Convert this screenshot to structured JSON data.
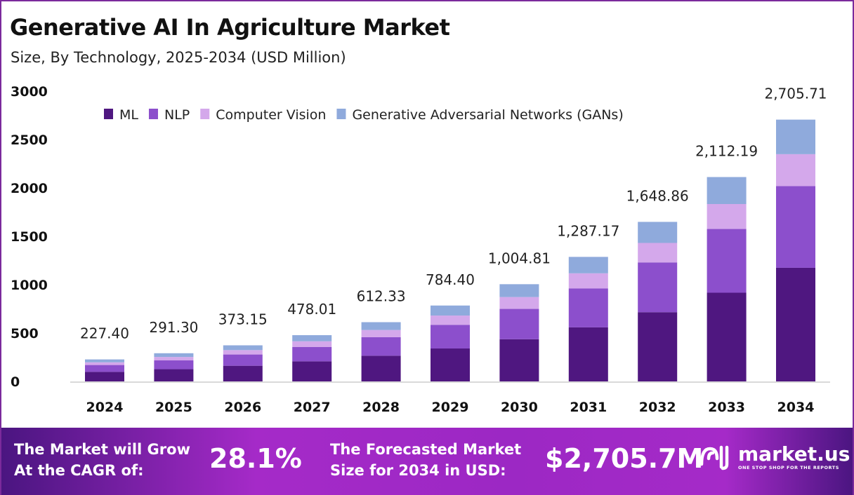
{
  "chart_data": {
    "type": "bar",
    "stacked": true,
    "title": "Generative AI In Agriculture Market",
    "subtitle": "Size, By Technology, 2025-2034 (USD Million)",
    "categories": [
      "2024",
      "2025",
      "2026",
      "2027",
      "2028",
      "2029",
      "2030",
      "2031",
      "2032",
      "2033",
      "2034"
    ],
    "series": [
      {
        "name": "ML",
        "color": "#4f1780",
        "values": [
          98.7,
          126.4,
          161.9,
          207.5,
          265.8,
          340.4,
          436.1,
          558.6,
          715.6,
          916.7,
          1174.3
        ]
      },
      {
        "name": "NLP",
        "color": "#8c4fcc",
        "values": [
          70.9,
          90.9,
          116.4,
          149.1,
          191.0,
          244.7,
          313.5,
          401.6,
          514.4,
          659.0,
          844.2
        ]
      },
      {
        "name": "Computer Vision",
        "color": "#d4a8eb",
        "values": [
          27.7,
          35.5,
          45.5,
          58.3,
          74.7,
          95.7,
          122.6,
          157.0,
          201.2,
          257.7,
          330.1
        ]
      },
      {
        "name": "Generative Adversarial Networks (GANs)",
        "color": "#8faadc",
        "values": [
          30.1,
          38.5,
          49.3,
          63.1,
          80.8,
          103.6,
          132.6,
          169.9,
          217.7,
          278.8,
          357.1
        ]
      }
    ],
    "totals": [
      "227.40",
      "291.30",
      "373.15",
      "478.01",
      "612.33",
      "784.40",
      "1,004.81",
      "1,287.17",
      "1,648.86",
      "2,112.19",
      "2,705.71"
    ],
    "yticks": [
      "0",
      "500",
      "1000",
      "1500",
      "2000",
      "2500",
      "3000"
    ],
    "ylim": [
      0,
      3000
    ],
    "grid": false,
    "legend": "top-left"
  },
  "footer": {
    "cagr_label_1": "The Market will Grow",
    "cagr_label_2": "At the CAGR of:",
    "cagr_value": "28.1%",
    "forecast_label_1": "The Forecasted Market",
    "forecast_label_2": "Size for 2034 in USD:",
    "forecast_value": "$2,705.7M",
    "brand": "market.us",
    "tagline": "ONE STOP SHOP FOR THE REPORTS"
  }
}
